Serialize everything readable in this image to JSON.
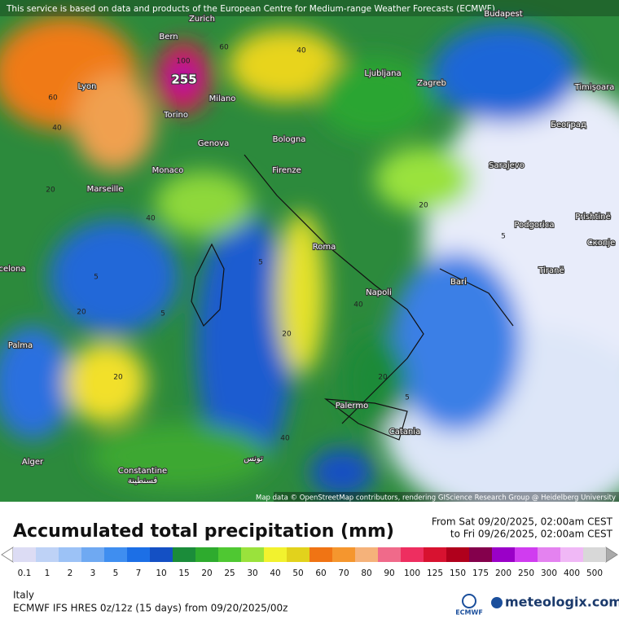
{
  "banner": "This service is based on data and products of the European Centre for Medium-range Weather Forecasts (ECMWF)",
  "attribution": "Map data © OpenStreetMap contributors, rendering GIScience Research Group @ Heidelberg University",
  "cities": [
    "Budapest",
    "Bern",
    "Zurich",
    "Lyon",
    "Milano",
    "Torino",
    "Ljubljana",
    "Zagreb",
    "Timișoara",
    "Београд",
    "Genova",
    "Bologna",
    "Monaco",
    "Marseille",
    "Firenze",
    "Sarajevo",
    "Podgorica",
    "Prishtinë",
    "Скопје",
    "Roma",
    "Tiranë",
    "Bari",
    "Napoli",
    "celona",
    "Palma",
    "Palermo",
    "Catania",
    "Alger",
    "Constantine",
    "قسنطينة",
    "تونس"
  ],
  "contour_labels": [
    "255",
    "100",
    "60",
    "40",
    "60",
    "40",
    "20",
    "40",
    "20",
    "5",
    "5",
    "20",
    "5",
    "20",
    "40",
    "20",
    "40",
    "5",
    "5",
    "20"
  ],
  "title": "Accumulated total precipitation (mm)",
  "period_from": "From Sat 09/20/2025, 02:00am CEST",
  "period_to": "to Fri 09/26/2025, 02:00am CEST",
  "legend": [
    {
      "value": 0.1,
      "color": "#dcdcf4"
    },
    {
      "value": 1,
      "color": "#bed2f6"
    },
    {
      "value": 2,
      "color": "#9cc2f6"
    },
    {
      "value": 3,
      "color": "#6fa9f2"
    },
    {
      "value": 5,
      "color": "#3f8ef0"
    },
    {
      "value": 7,
      "color": "#1c6fe6"
    },
    {
      "value": 10,
      "color": "#1450c4"
    },
    {
      "value": 15,
      "color": "#1b8c3a"
    },
    {
      "value": 20,
      "color": "#2eab2e"
    },
    {
      "value": 25,
      "color": "#4fc832"
    },
    {
      "value": 30,
      "color": "#9ae23c"
    },
    {
      "value": 40,
      "color": "#f2f22e"
    },
    {
      "value": 50,
      "color": "#e2d21c"
    },
    {
      "value": 60,
      "color": "#f07414"
    },
    {
      "value": 70,
      "color": "#f5962e"
    },
    {
      "value": 80,
      "color": "#f5b27a"
    },
    {
      "value": 90,
      "color": "#f06a8a"
    },
    {
      "value": 100,
      "color": "#ee2e60"
    },
    {
      "value": 125,
      "color": "#d81230"
    },
    {
      "value": 150,
      "color": "#b0001c"
    },
    {
      "value": 175,
      "color": "#84004c"
    },
    {
      "value": 200,
      "color": "#9a00c8"
    },
    {
      "value": 250,
      "color": "#d03cf0"
    },
    {
      "value": 300,
      "color": "#e482f0"
    },
    {
      "value": 400,
      "color": "#f0b8f6"
    },
    {
      "value": 500,
      "color": "#d8d8d8"
    }
  ],
  "region": "Italy",
  "model": "ECMWF IFS HRES 0z/12z (15 days) from  09/20/2025/00z",
  "logo_ecmwf": "ECMWF",
  "logo_site": "meteologix.com"
}
